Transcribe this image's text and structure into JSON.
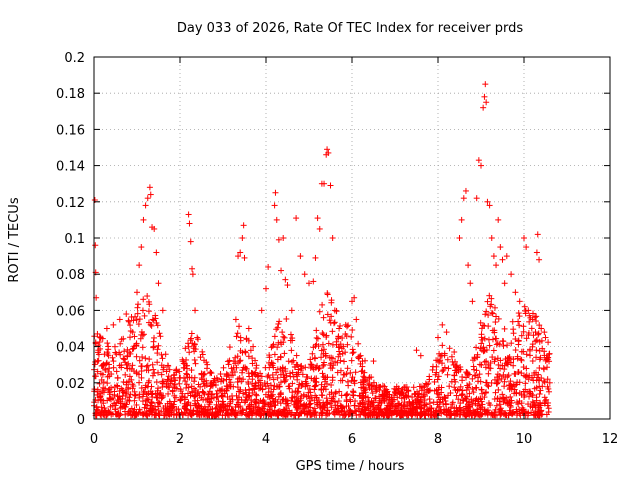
{
  "chart_data": {
    "type": "scatter",
    "title": "Day 033 of 2026, Rate Of TEC Index for receiver prds",
    "xlabel": "GPS time / hours",
    "ylabel": "ROTI / TECUs",
    "xlim": [
      0,
      12
    ],
    "ylim": [
      0,
      0.2
    ],
    "xticks": [
      0,
      2,
      4,
      6,
      8,
      10,
      12
    ],
    "yticks": [
      0,
      0.02,
      0.04,
      0.06,
      0.08,
      0.1,
      0.12,
      0.14,
      0.16,
      0.18,
      0.2
    ],
    "xtick_labels": [
      "0",
      "2",
      "4",
      "6",
      "8",
      "10",
      "12"
    ],
    "ytick_labels": [
      "0",
      "0.02",
      "0.04",
      "0.06",
      "0.08",
      "0.1",
      "0.12",
      "0.14",
      "0.16",
      "0.18",
      "0.2"
    ],
    "grid": true,
    "marker": "plus",
    "color": "#ff0000",
    "data_range_hours": [
      0,
      10.6
    ],
    "series": [
      {
        "points": [
          [
            0.02,
            0.121
          ],
          [
            0.03,
            0.096
          ],
          [
            0.04,
            0.081
          ],
          [
            0.05,
            0.067
          ],
          [
            0.08,
            0.047
          ],
          [
            0.1,
            0.038
          ],
          [
            0.15,
            0.045
          ],
          [
            0.3,
            0.05
          ],
          [
            0.45,
            0.052
          ],
          [
            0.6,
            0.055
          ],
          [
            0.75,
            0.058
          ],
          [
            0.9,
            0.048
          ],
          [
            1.0,
            0.07
          ],
          [
            1.05,
            0.085
          ],
          [
            1.1,
            0.095
          ],
          [
            1.15,
            0.11
          ],
          [
            1.2,
            0.118
          ],
          [
            1.25,
            0.122
          ],
          [
            1.3,
            0.128
          ],
          [
            1.32,
            0.124
          ],
          [
            1.35,
            0.106
          ],
          [
            1.4,
            0.105
          ],
          [
            1.45,
            0.092
          ],
          [
            1.5,
            0.075
          ],
          [
            1.6,
            0.06
          ],
          [
            2.2,
            0.113
          ],
          [
            2.22,
            0.108
          ],
          [
            2.25,
            0.098
          ],
          [
            2.28,
            0.083
          ],
          [
            2.3,
            0.08
          ],
          [
            2.35,
            0.06
          ],
          [
            2.4,
            0.045
          ],
          [
            3.3,
            0.055
          ],
          [
            3.35,
            0.09
          ],
          [
            3.4,
            0.092
          ],
          [
            3.45,
            0.1
          ],
          [
            3.48,
            0.107
          ],
          [
            3.5,
            0.089
          ],
          [
            3.6,
            0.05
          ],
          [
            3.7,
            0.04
          ],
          [
            3.9,
            0.06
          ],
          [
            4.0,
            0.072
          ],
          [
            4.05,
            0.084
          ],
          [
            4.2,
            0.118
          ],
          [
            4.22,
            0.125
          ],
          [
            4.25,
            0.11
          ],
          [
            4.3,
            0.099
          ],
          [
            4.35,
            0.082
          ],
          [
            4.4,
            0.1
          ],
          [
            4.45,
            0.077
          ],
          [
            4.5,
            0.074
          ],
          [
            4.6,
            0.06
          ],
          [
            4.7,
            0.111
          ],
          [
            4.8,
            0.09
          ],
          [
            4.9,
            0.08
          ],
          [
            5.0,
            0.075
          ],
          [
            5.1,
            0.076
          ],
          [
            5.15,
            0.089
          ],
          [
            5.2,
            0.111
          ],
          [
            5.25,
            0.105
          ],
          [
            5.3,
            0.13
          ],
          [
            5.35,
            0.13
          ],
          [
            5.4,
            0.146
          ],
          [
            5.42,
            0.149
          ],
          [
            5.45,
            0.147
          ],
          [
            5.5,
            0.129
          ],
          [
            5.55,
            0.1
          ],
          [
            5.6,
            0.06
          ],
          [
            5.7,
            0.05
          ],
          [
            5.8,
            0.04
          ],
          [
            6.0,
            0.065
          ],
          [
            6.05,
            0.067
          ],
          [
            6.1,
            0.055
          ],
          [
            6.2,
            0.035
          ],
          [
            6.5,
            0.032
          ],
          [
            7.5,
            0.038
          ],
          [
            7.6,
            0.035
          ],
          [
            8.0,
            0.045
          ],
          [
            8.1,
            0.052
          ],
          [
            8.2,
            0.048
          ],
          [
            8.5,
            0.1
          ],
          [
            8.55,
            0.11
          ],
          [
            8.6,
            0.122
          ],
          [
            8.65,
            0.126
          ],
          [
            8.7,
            0.085
          ],
          [
            8.75,
            0.075
          ],
          [
            8.8,
            0.065
          ],
          [
            8.9,
            0.122
          ],
          [
            8.95,
            0.143
          ],
          [
            9.0,
            0.14
          ],
          [
            9.05,
            0.172
          ],
          [
            9.08,
            0.178
          ],
          [
            9.1,
            0.185
          ],
          [
            9.12,
            0.175
          ],
          [
            9.15,
            0.12
          ],
          [
            9.2,
            0.118
          ],
          [
            9.25,
            0.1
          ],
          [
            9.3,
            0.09
          ],
          [
            9.35,
            0.085
          ],
          [
            9.4,
            0.11
          ],
          [
            9.45,
            0.095
          ],
          [
            9.5,
            0.088
          ],
          [
            9.55,
            0.075
          ],
          [
            9.6,
            0.09
          ],
          [
            9.7,
            0.08
          ],
          [
            9.8,
            0.07
          ],
          [
            9.9,
            0.065
          ],
          [
            10.0,
            0.1
          ],
          [
            10.05,
            0.095
          ],
          [
            10.1,
            0.06
          ],
          [
            10.2,
            0.055
          ],
          [
            10.3,
            0.092
          ],
          [
            10.32,
            0.102
          ],
          [
            10.35,
            0.088
          ],
          [
            10.4,
            0.05
          ],
          [
            10.5,
            0.045
          ],
          [
            10.55,
            0.022
          ],
          [
            10.6,
            0.02
          ]
        ]
      }
    ]
  }
}
